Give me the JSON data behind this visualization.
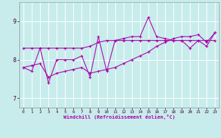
{
  "xlabel": "Windchill (Refroidissement éolien,°C)",
  "bg_color": "#c8ecec",
  "line_color": "#aa00aa",
  "grid_color": "#ffffff",
  "xlim": [
    -0.5,
    23.5
  ],
  "ylim": [
    6.75,
    9.5
  ],
  "yticks": [
    7,
    8,
    9
  ],
  "xticks": [
    0,
    1,
    2,
    3,
    4,
    5,
    6,
    7,
    8,
    9,
    10,
    11,
    12,
    13,
    14,
    15,
    16,
    17,
    18,
    19,
    20,
    21,
    22,
    23
  ],
  "series1": [
    7.8,
    7.7,
    8.3,
    7.4,
    8.0,
    8.0,
    8.0,
    8.1,
    7.55,
    8.6,
    7.7,
    8.5,
    8.55,
    8.6,
    8.6,
    9.1,
    8.6,
    8.55,
    8.5,
    8.5,
    8.3,
    8.5,
    8.35,
    8.7
  ],
  "series2": [
    8.3,
    8.3,
    8.3,
    8.3,
    8.3,
    8.3,
    8.3,
    8.3,
    8.35,
    8.45,
    8.5,
    8.5,
    8.5,
    8.5,
    8.5,
    8.5,
    8.5,
    8.5,
    8.5,
    8.5,
    8.5,
    8.5,
    8.5,
    8.5
  ],
  "series3": [
    7.8,
    7.85,
    7.9,
    7.55,
    7.65,
    7.7,
    7.75,
    7.8,
    7.65,
    7.7,
    7.75,
    7.8,
    7.9,
    8.0,
    8.1,
    8.2,
    8.35,
    8.45,
    8.55,
    8.6,
    8.6,
    8.65,
    8.45,
    8.7
  ]
}
